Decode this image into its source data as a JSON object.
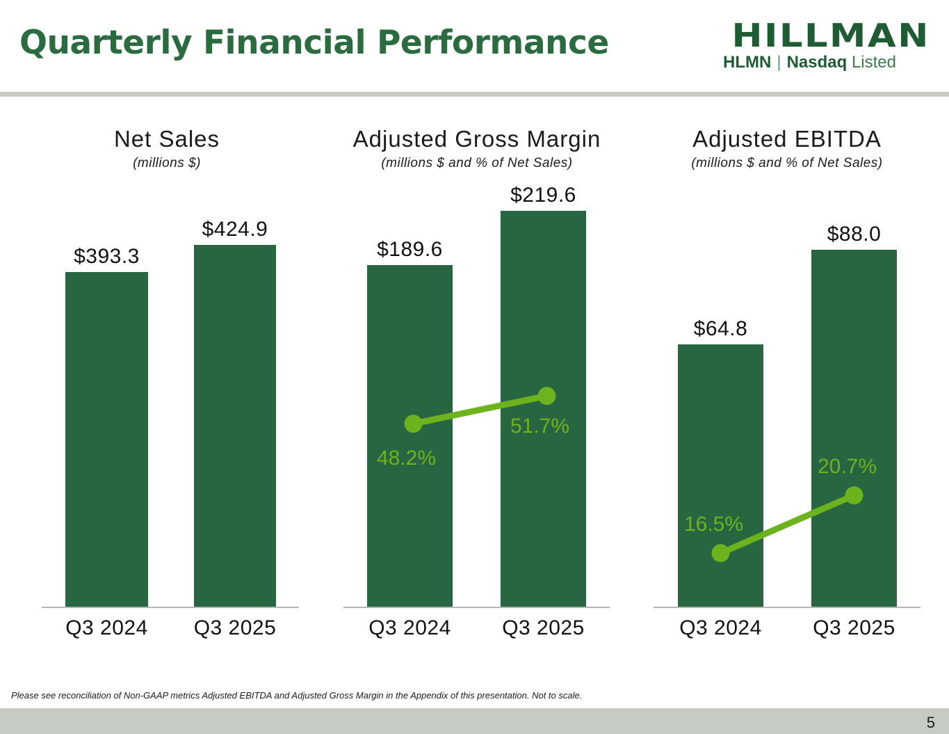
{
  "header": {
    "title": "Quarterly Financial Performance",
    "logo": {
      "name": "HILLMAN",
      "ticker": "HLMN",
      "separator": "|",
      "exchange": "Nasdaq",
      "listed": "Listed"
    }
  },
  "colors": {
    "bar": "#276640",
    "line": "#6cb31e",
    "title": "#2a6b3f",
    "rule": "#c6ccc4",
    "axis": "#b5b5b5"
  },
  "chart_data": [
    {
      "type": "bar",
      "title": "Net Sales",
      "subtitle": "(millions $)",
      "categories": [
        "Q3 2024",
        "Q3 2025"
      ],
      "values": [
        393.3,
        424.9
      ],
      "value_labels": [
        "$393.3",
        "$424.9"
      ],
      "xlabel": "",
      "ylabel": "",
      "ylim": [
        0,
        500
      ],
      "grid": false
    },
    {
      "type": "bar",
      "title": "Adjusted Gross Margin",
      "subtitle": "(millions $ and % of Net Sales)",
      "categories": [
        "Q3 2024",
        "Q3 2025"
      ],
      "values": [
        189.6,
        219.6
      ],
      "value_labels": [
        "$189.6",
        "$219.6"
      ],
      "line_series": {
        "name": "% of Net Sales",
        "type": "line",
        "values": [
          48.2,
          51.7
        ],
        "value_labels": [
          "48.2%",
          "51.7%"
        ],
        "label_positions": [
          "below",
          "below"
        ]
      },
      "xlabel": "",
      "ylabel": "",
      "ylim": [
        0,
        250
      ],
      "grid": false
    },
    {
      "type": "bar",
      "title": "Adjusted EBITDA",
      "subtitle": "(millions $ and % of Net Sales)",
      "categories": [
        "Q3 2024",
        "Q3 2025"
      ],
      "values": [
        64.8,
        88.0
      ],
      "value_labels": [
        "$64.8",
        "$88.0"
      ],
      "line_series": {
        "name": "% of Net Sales",
        "type": "line",
        "values": [
          16.5,
          20.7
        ],
        "value_labels": [
          "16.5%",
          "20.7%"
        ],
        "label_positions": [
          "above",
          "above"
        ]
      },
      "xlabel": "",
      "ylabel": "",
      "ylim": [
        0,
        100
      ],
      "grid": false
    }
  ],
  "footer": {
    "note": "Please see reconciliation of Non-GAAP metrics Adjusted EBITDA and Adjusted Gross Margin in the Appendix of this presentation. Not to scale.",
    "page_number": "5"
  }
}
